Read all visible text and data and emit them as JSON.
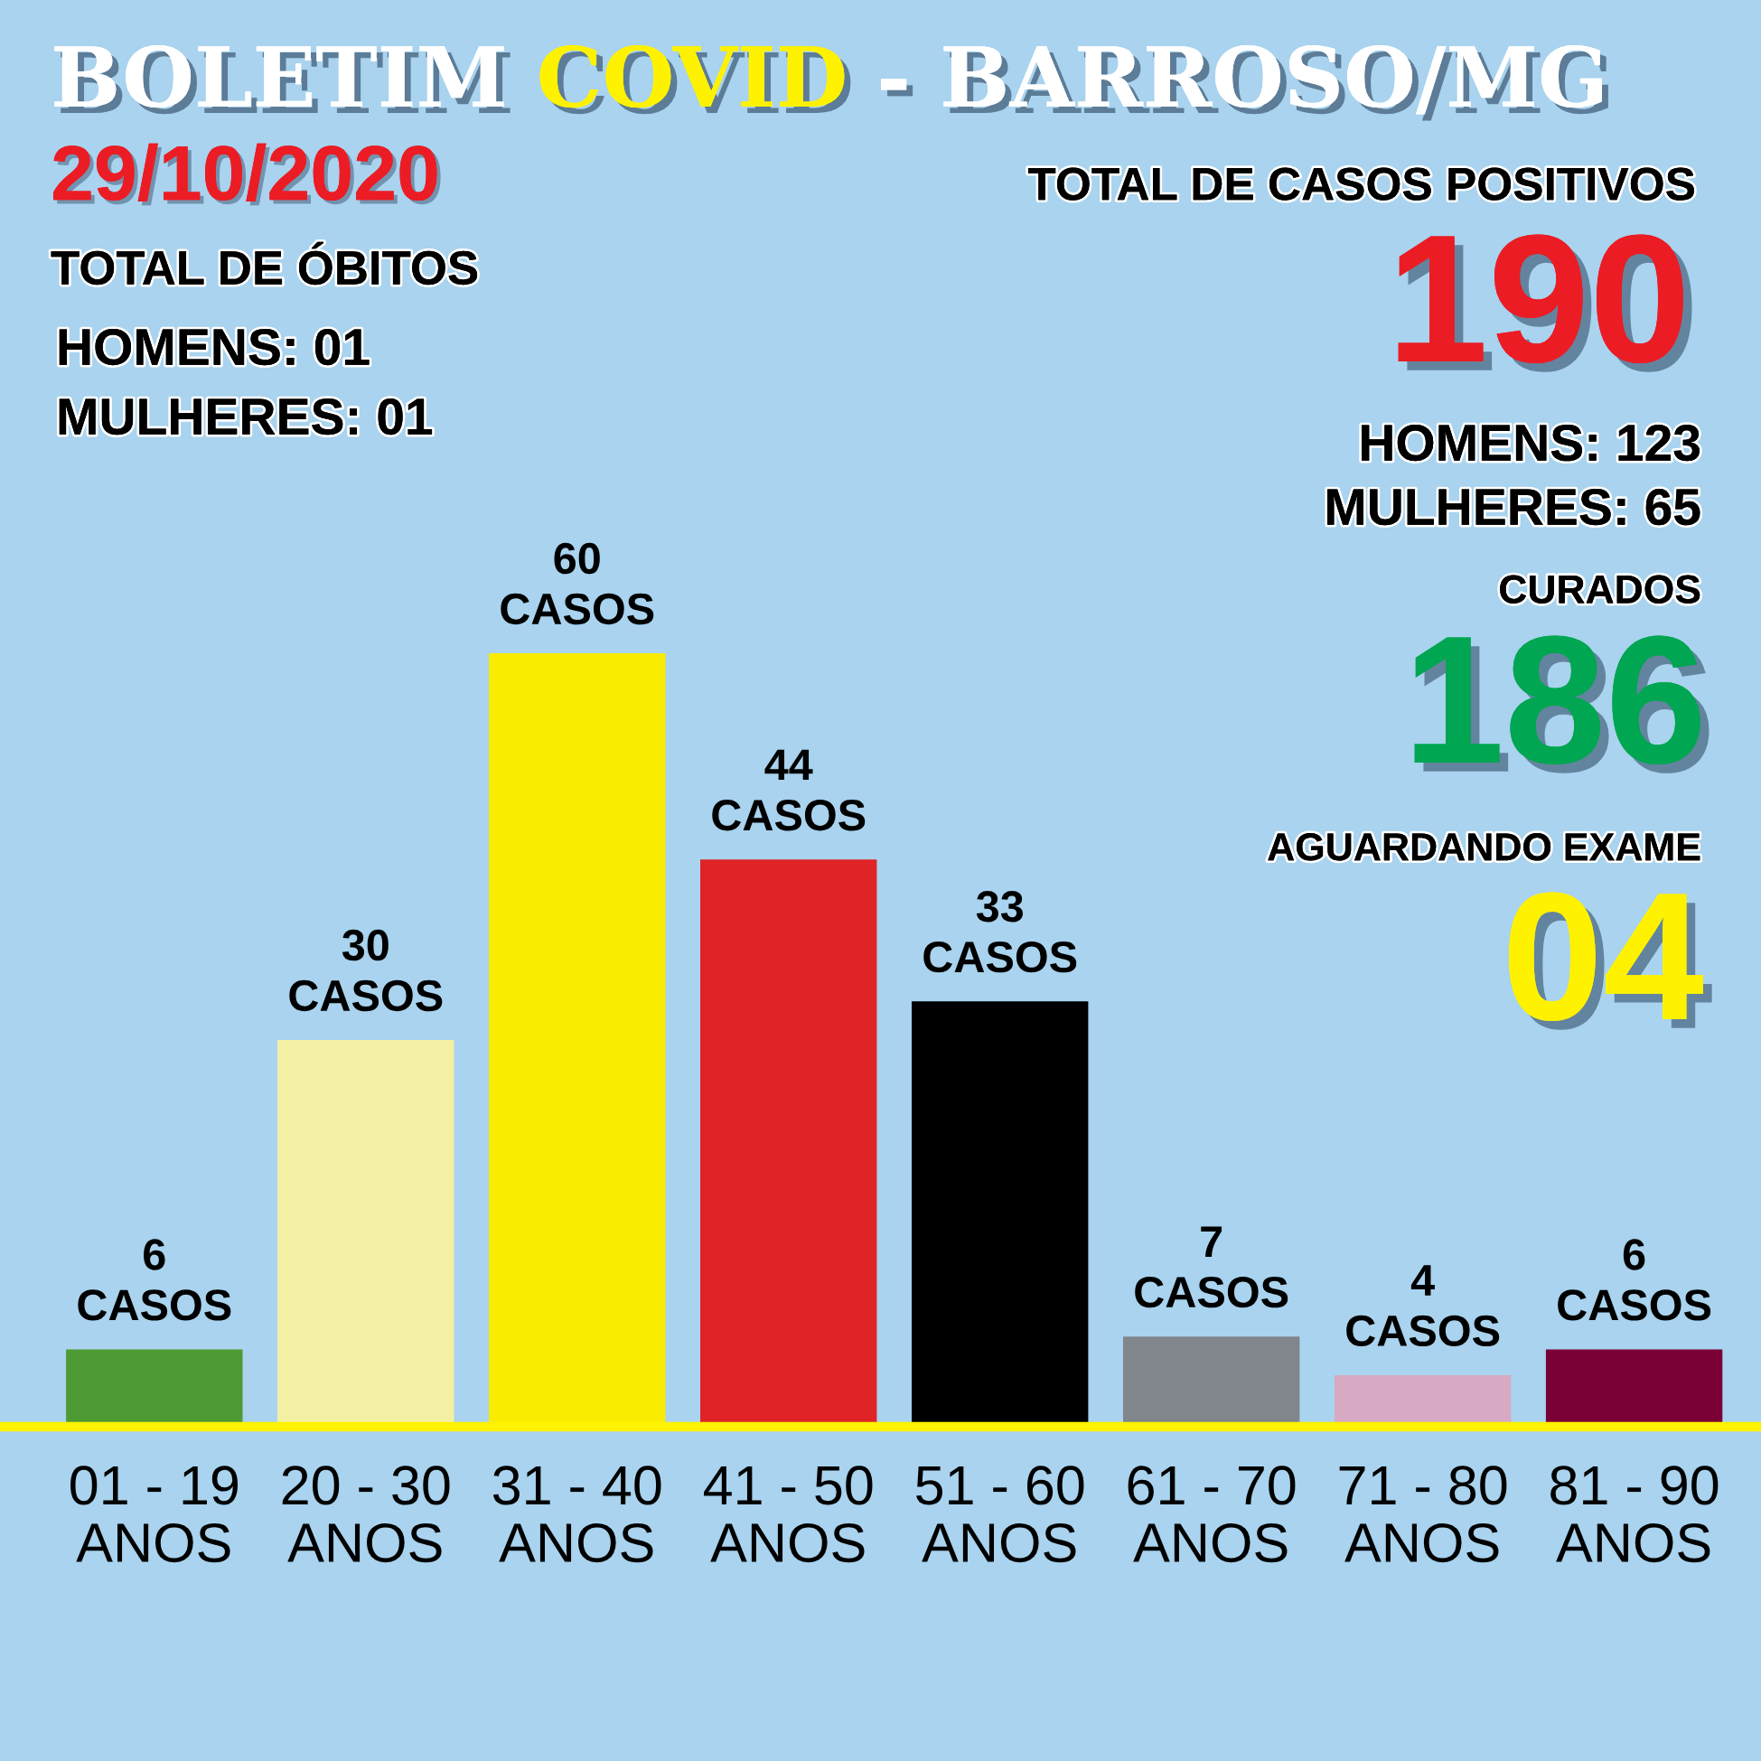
{
  "chart_data": {
    "type": "bar",
    "title": "BOLETIM COVID - BARROSO/MG",
    "categories": [
      "01 - 19\nANOS",
      "20 - 30\nANOS",
      "31 - 40\nANOS",
      "41 - 50\nANOS",
      "51 - 60\nANOS",
      "61 - 70\nANOS",
      "71 - 80\nANOS",
      "81 - 90\nANOS"
    ],
    "values": [
      6,
      30,
      60,
      44,
      33,
      7,
      4,
      6
    ],
    "colors": [
      "#4e9a34",
      "#f3f0a4",
      "#f9ec00",
      "#e02326",
      "#000000",
      "#80868b",
      "#d8a9c3",
      "#7b0035"
    ],
    "value_labels": [
      "6\nCASOS",
      "30\nCASOS",
      "60\nCASOS",
      "44\nCASOS",
      "33\nCASOS",
      "7\nCASOS",
      "4\nCASOS",
      "6\nCASOS"
    ],
    "annotations": [
      "29/10/2020",
      "TOTAL DE ÓBITOS",
      "HOMENS: 01",
      "MULHERES: 01",
      "TOTAL DE CASOS POSITIVOS",
      "190",
      "HOMENS: 123",
      "MULHERES: 65",
      "CURADOS",
      "186",
      "AGUARDANDO EXAME",
      "04"
    ],
    "tick_labels": "x"
  }
}
